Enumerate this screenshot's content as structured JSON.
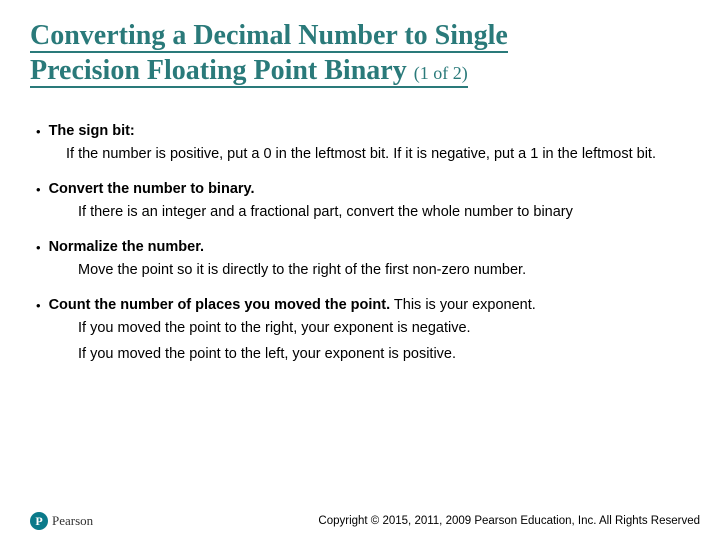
{
  "title_line1": "Converting a Decimal Number to Single",
  "title_line2": "Precision Floating Point Binary",
  "title_part": "(1 of 2)",
  "bullets": [
    {
      "head": "The sign bit:",
      "head_extra": "",
      "subs": [
        "If the number is positive, put a 0 in the leftmost bit. If it is negative, put a 1 in the leftmost bit."
      ]
    },
    {
      "head": "Convert the number to binary.",
      "head_extra": "",
      "subs": [
        "If there is an integer and a fractional part, convert the whole number to binary"
      ]
    },
    {
      "head": "Normalize the number.",
      "head_extra": "",
      "subs": [
        "Move the point so it is directly to the right of the first non-zero number."
      ]
    },
    {
      "head": "Count the number of places you moved the point.",
      "head_extra": " This is your exponent.",
      "subs": [
        "If you moved the point to the right, your exponent is negative.",
        "If you moved the point to the left, your exponent is positive."
      ]
    }
  ],
  "logo_text": "Pearson",
  "copyright": "Copyright © 2015, 2011, 2009 Pearson Education, Inc. All Rights Reserved",
  "colors": {
    "title": "#2a7a7a",
    "text": "#000000",
    "background": "#ffffff",
    "logo": "#0a7a8a"
  }
}
